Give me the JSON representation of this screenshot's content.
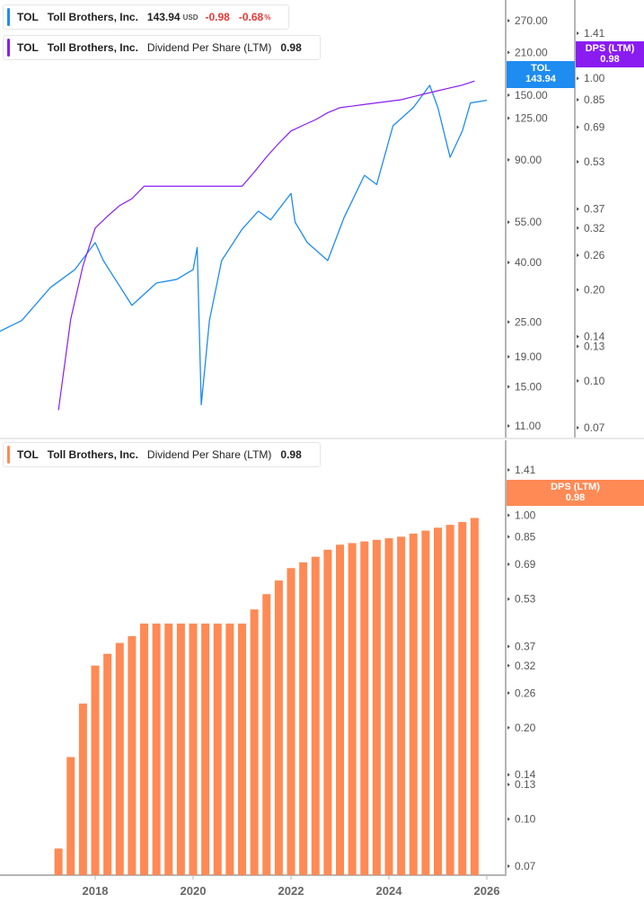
{
  "legend_price": {
    "ticker": "TOL",
    "company": "Toll Brothers, Inc.",
    "price": "143.94",
    "currency": "USD",
    "change": "-0.98",
    "change_pct": "-0.68",
    "pct_sign": "%"
  },
  "legend_dps_line": {
    "ticker": "TOL",
    "company": "Toll Brothers, Inc.",
    "metric": "Dividend Per Share (LTM)",
    "value": "0.98"
  },
  "legend_dps_bar": {
    "ticker": "TOL",
    "company": "Toll Brothers, Inc.",
    "metric": "Dividend Per Share (LTM)",
    "value": "0.98"
  },
  "tags": {
    "price_label": "TOL",
    "price_value": "143.94",
    "dps_label": "DPS (LTM)",
    "dps_value": "0.98"
  },
  "colors": {
    "price": "#1e8cf0",
    "dps_line": "#8a1cf2",
    "dps_bar": "#ff8a55",
    "axis": "#b5b5b5"
  },
  "chart_data": [
    {
      "type": "line",
      "panel": "top",
      "scale": "log",
      "x_ticks": [
        "2018",
        "2020",
        "2022",
        "2024",
        "2026"
      ],
      "price_axis_ticks": [
        "270.00",
        "210.00",
        "150.00",
        "125.00",
        "90.00",
        "55.00",
        "40.00",
        "25.00",
        "19.00",
        "15.00",
        "11.00"
      ],
      "dps_axis_ticks": [
        "1.41",
        "1.00",
        "0.85",
        "0.69",
        "0.53",
        "0.37",
        "0.32",
        "0.26",
        "0.20",
        "0.14",
        "0.13",
        "0.10",
        "0.07"
      ],
      "series": [
        {
          "name": "TOL",
          "points": [
            [
              "2016-01",
              23
            ],
            [
              "2016-07",
              25.3
            ],
            [
              "2017-02",
              32.8
            ],
            [
              "2017-08",
              37.8
            ],
            [
              "2018-01",
              46.8
            ],
            [
              "2018-03",
              40.6
            ],
            [
              "2018-10",
              28.5
            ],
            [
              "2019-04",
              34
            ],
            [
              "2019-09",
              35
            ],
            [
              "2020-01",
              37.8
            ],
            [
              "2020-02",
              45
            ],
            [
              "2020-03",
              13
            ],
            [
              "2020-05",
              25.3
            ],
            [
              "2020-08",
              40.6
            ],
            [
              "2021-01",
              52
            ],
            [
              "2021-05",
              60
            ],
            [
              "2021-08",
              56
            ],
            [
              "2022-01",
              69
            ],
            [
              "2022-02",
              55
            ],
            [
              "2022-05",
              46.8
            ],
            [
              "2022-10",
              40.6
            ],
            [
              "2023-02",
              57
            ],
            [
              "2023-07",
              79.6
            ],
            [
              "2023-10",
              74
            ],
            [
              "2024-02",
              117.7
            ],
            [
              "2024-07",
              136
            ],
            [
              "2024-11",
              162
            ],
            [
              "2025-01",
              136
            ],
            [
              "2025-04",
              91.8
            ],
            [
              "2025-07",
              113
            ],
            [
              "2025-09",
              141
            ],
            [
              "2026-01",
              143.94
            ]
          ]
        },
        {
          "name": "DPS (LTM)",
          "points": "same as bars"
        }
      ]
    },
    {
      "type": "bar",
      "panel": "bottom",
      "scale": "log",
      "name": "DPS (LTM)",
      "categories": [
        "2017-Q2",
        "2017-Q3",
        "2017-Q4",
        "2018-Q1",
        "2018-Q2",
        "2018-Q3",
        "2018-Q4",
        "2019-Q1",
        "2019-Q2",
        "2019-Q3",
        "2019-Q4",
        "2020-Q1",
        "2020-Q2",
        "2020-Q3",
        "2020-Q4",
        "2021-Q1",
        "2021-Q2",
        "2021-Q3",
        "2021-Q4",
        "2022-Q1",
        "2022-Q2",
        "2022-Q3",
        "2022-Q4",
        "2023-Q1",
        "2023-Q2",
        "2023-Q3",
        "2023-Q4",
        "2024-Q1",
        "2024-Q2",
        "2024-Q3",
        "2024-Q4",
        "2025-Q1",
        "2025-Q2",
        "2025-Q3",
        "2025-Q4"
      ],
      "values": [
        0.08,
        0.16,
        0.24,
        0.32,
        0.35,
        0.38,
        0.4,
        0.44,
        0.44,
        0.44,
        0.44,
        0.44,
        0.44,
        0.44,
        0.44,
        0.44,
        0.49,
        0.55,
        0.61,
        0.67,
        0.7,
        0.73,
        0.77,
        0.8,
        0.81,
        0.82,
        0.83,
        0.84,
        0.85,
        0.87,
        0.89,
        0.91,
        0.93,
        0.95,
        0.98
      ],
      "y_ticks": [
        "1.41",
        "1.00",
        "0.85",
        "0.69",
        "0.53",
        "0.37",
        "0.32",
        "0.26",
        "0.20",
        "0.14",
        "0.13",
        "0.10",
        "0.07"
      ],
      "x_ticks": [
        "2018",
        "2020",
        "2022",
        "2024",
        "2026"
      ]
    }
  ]
}
